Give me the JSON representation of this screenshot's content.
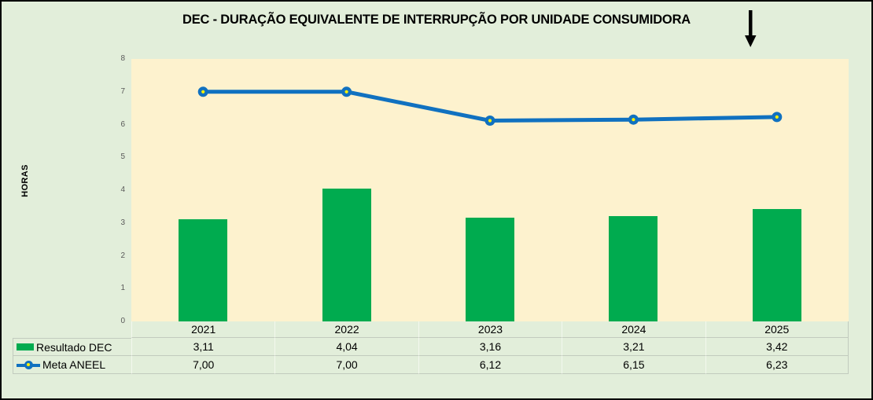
{
  "chart_data": {
    "type": "combo",
    "title": "DEC - DURAÇÃO EQUIVALENTE DE INTERRUPÇÃO POR UNIDADE CONSUMIDORA",
    "xlabel": "",
    "ylabel": "HORAS",
    "ylim": [
      0,
      8
    ],
    "yticks": [
      0,
      1,
      2,
      3,
      4,
      5,
      6,
      7,
      8
    ],
    "grid": false,
    "legend_position": "bottom-left-table",
    "categories": [
      "2021",
      "2022",
      "2023",
      "2024",
      "2025"
    ],
    "series": [
      {
        "name": "Resultado DEC",
        "type": "bar",
        "values": [
          3.11,
          4.04,
          3.16,
          3.21,
          3.42
        ],
        "labels": [
          "3,11",
          "4,04",
          "3,16",
          "3,21",
          "3,42"
        ],
        "color": "#00ab4f"
      },
      {
        "name": "Meta ANEEL",
        "type": "line",
        "values": [
          7.0,
          7.0,
          6.12,
          6.15,
          6.23
        ],
        "labels": [
          "7,00",
          "7,00",
          "6,12",
          "6,15",
          "6,23"
        ],
        "color": "#1071c0",
        "marker": "circle-with-yellow-center"
      }
    ]
  },
  "icons": {
    "trend_arrow": "down-arrow"
  },
  "colors": {
    "background": "#e2eeda",
    "plot_background": "#fdf2ce",
    "bar": "#00ab4f",
    "line": "#1071c0",
    "marker_center": "#fff200",
    "tick_label": "#595959",
    "table_border": "#c2cbbe",
    "frame_border": "#000000"
  }
}
